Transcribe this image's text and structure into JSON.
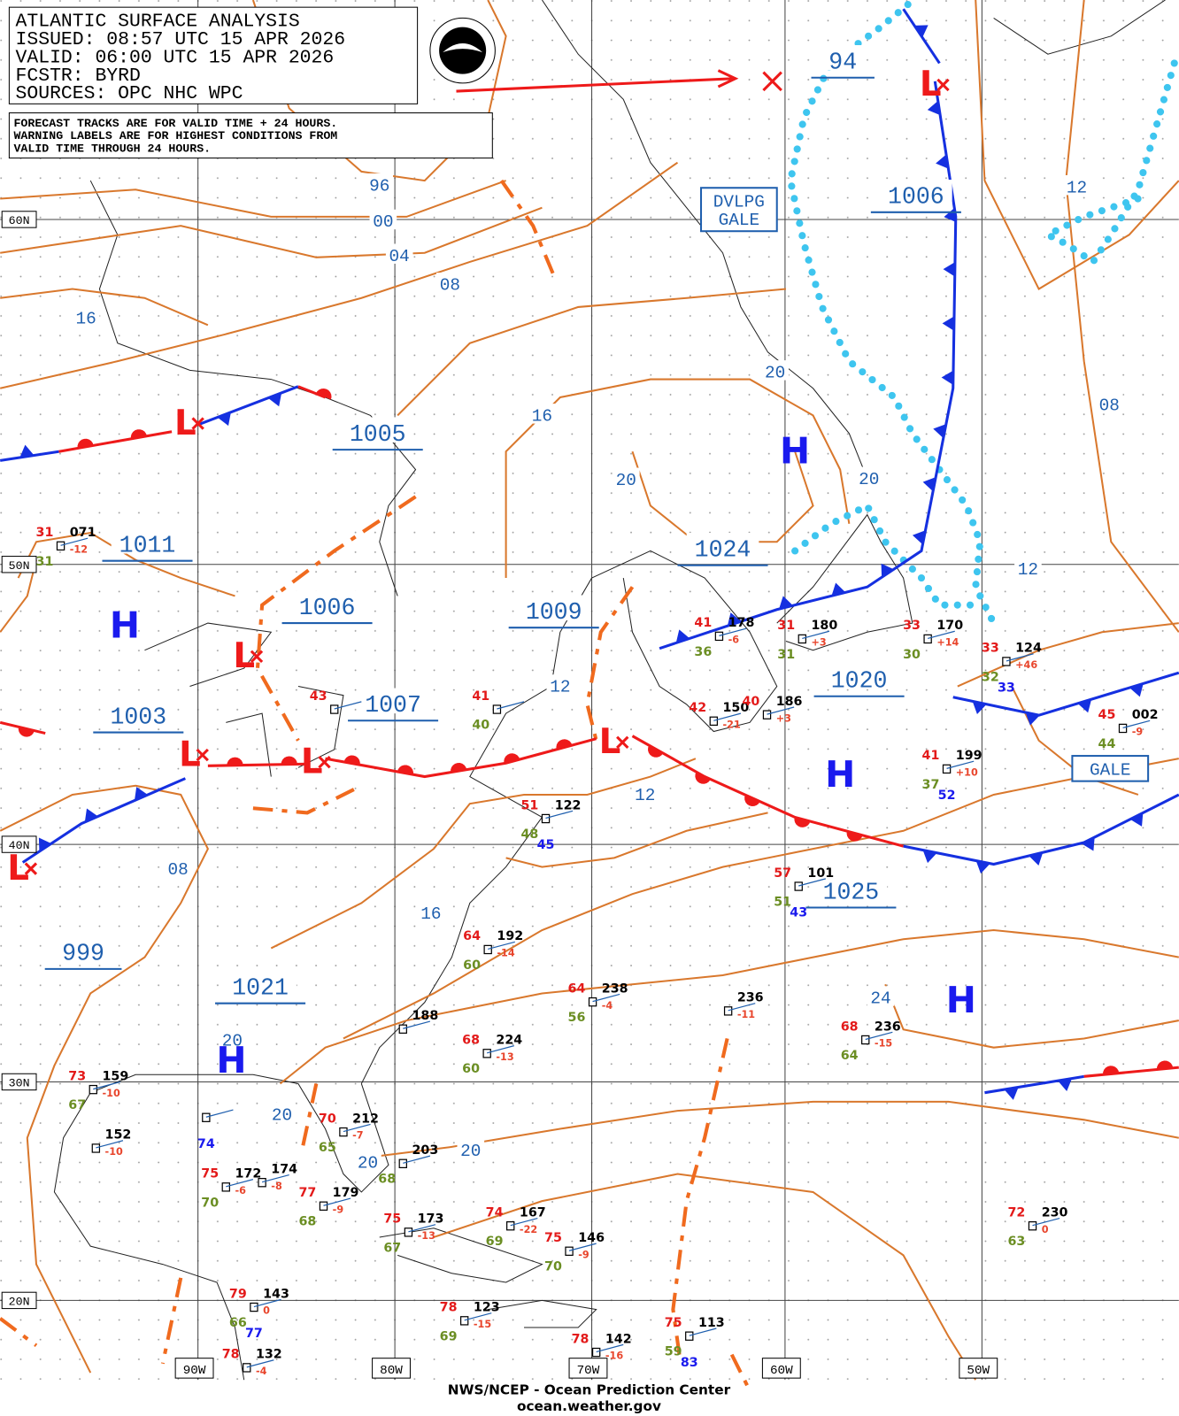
{
  "header": {
    "lines": [
      "ATLANTIC SURFACE ANALYSIS",
      "ISSUED: 08:57 UTC 15 APR 2026",
      "VALID:  06:00 UTC 15 APR 2026",
      "FCSTR:  BYRD",
      "SOURCES: OPC NHC WPC"
    ]
  },
  "notes": [
    "FORECAST TRACKS ARE FOR VALID TIME + 24 HOURS.",
    "WARNING LABELS ARE FOR HIGHEST CONDITIONS FROM",
    "VALID TIME THROUGH 24 HOURS."
  ],
  "latitude_labels": [
    "60N",
    "50N",
    "40N",
    "30N",
    "20N"
  ],
  "longitude_labels": [
    "90W",
    "80W",
    "70W",
    "60W",
    "50W"
  ],
  "isobar_labels": [
    "96",
    "00",
    "04",
    "08",
    "16",
    "16",
    "20",
    "20",
    "20",
    "12",
    "08",
    "12",
    "12",
    "12",
    "08",
    "16",
    "24",
    "20",
    "20",
    "20",
    "20"
  ],
  "center_pressures": [
    "94",
    "1006",
    "1005",
    "1011",
    "1024",
    "1006",
    "1009",
    "1020",
    "1007",
    "1003",
    "1025",
    "999",
    "1021"
  ],
  "highs": [
    "H",
    "H",
    "H",
    "H",
    "H"
  ],
  "lows": [
    "L",
    "L",
    "L",
    "L",
    "L",
    "L",
    "L"
  ],
  "warnings": [
    [
      "DVLPG",
      "GALE"
    ],
    [
      "GALE"
    ]
  ],
  "stations": [
    {
      "temperature": "31",
      "pressure": "071",
      "tendency": "-12",
      "dewpoint": "31"
    },
    {
      "temperature": "41",
      "dewpoint": "40"
    },
    {
      "temperature": "43"
    },
    {
      "temperature": "41",
      "pressure": "178",
      "tendency": "-6",
      "dewpoint": "36"
    },
    {
      "temperature": "31",
      "pressure": "180",
      "tendency": "+3",
      "dewpoint": "31"
    },
    {
      "temperature": "33",
      "pressure": "170",
      "tendency": "+14",
      "dewpoint": "30"
    },
    {
      "temperature": "33",
      "pressure": "124",
      "tendency": "+46",
      "dewpoint": "32",
      "extra": "33"
    },
    {
      "temperature": "42",
      "pressure": "150",
      "tendency": "-21"
    },
    {
      "temperature": "40",
      "pressure": "186",
      "tendency": "+3"
    },
    {
      "temperature": "45",
      "pressure": "002",
      "tendency": "-9",
      "dewpoint": "44"
    },
    {
      "temperature": "41",
      "pressure": "199",
      "tendency": "+10",
      "dewpoint": "37",
      "extra": "52"
    },
    {
      "temperature": "51",
      "pressure": "122",
      "dewpoint": "48",
      "extra": "45"
    },
    {
      "temperature": "57",
      "pressure": "101",
      "dewpoint": "51",
      "extra": "43"
    },
    {
      "temperature": "64",
      "pressure": "192",
      "tendency": "-14",
      "dewpoint": "60"
    },
    {
      "temperature": "64",
      "pressure": "238",
      "tendency": "-4",
      "dewpoint": "56"
    },
    {
      "pressure": "188"
    },
    {
      "temperature": "68",
      "pressure": "224",
      "tendency": "-13",
      "dewpoint": "60"
    },
    {
      "pressure": "236",
      "tendency": "-11"
    },
    {
      "temperature": "68",
      "pressure": "236",
      "tendency": "-15",
      "dewpoint": "64"
    },
    {
      "temperature": "73",
      "pressure": "159",
      "tendency": "-10",
      "dewpoint": "67"
    },
    {
      "pressure": "152",
      "tendency": "-10"
    },
    {
      "extra": "74"
    },
    {
      "temperature": "70",
      "pressure": "212",
      "tendency": "-7",
      "dewpoint": "65"
    },
    {
      "pressure": "203",
      "dewpoint": "68"
    },
    {
      "pressure": "174",
      "tendency": "-8"
    },
    {
      "temperature": "75",
      "pressure": "172",
      "tendency": "-6",
      "dewpoint": "70"
    },
    {
      "temperature": "77",
      "pressure": "179",
      "tendency": "-9",
      "dewpoint": "68"
    },
    {
      "temperature": "75",
      "pressure": "173",
      "tendency": "-13",
      "dewpoint": "67"
    },
    {
      "temperature": "74",
      "pressure": "167",
      "tendency": "-22",
      "dewpoint": "69"
    },
    {
      "temperature": "75",
      "pressure": "146",
      "tendency": "-9",
      "dewpoint": "70"
    },
    {
      "temperature": "72",
      "pressure": "230",
      "tendency": "0",
      "dewpoint": "63"
    },
    {
      "temperature": "79",
      "pressure": "143",
      "tendency": "0",
      "dewpoint": "66",
      "extra": "77"
    },
    {
      "temperature": "78",
      "pressure": "123",
      "tendency": "-15",
      "dewpoint": "69"
    },
    {
      "temperature": "78",
      "pressure": "142",
      "tendency": "-16"
    },
    {
      "temperature": "75",
      "pressure": "113",
      "dewpoint": "59",
      "extra": "83"
    },
    {
      "temperature": "78",
      "pressure": "132",
      "tendency": "-4"
    }
  ],
  "footer": [
    "NWS/NCEP - Ocean Prediction Center",
    "ocean.weather.gov"
  ]
}
